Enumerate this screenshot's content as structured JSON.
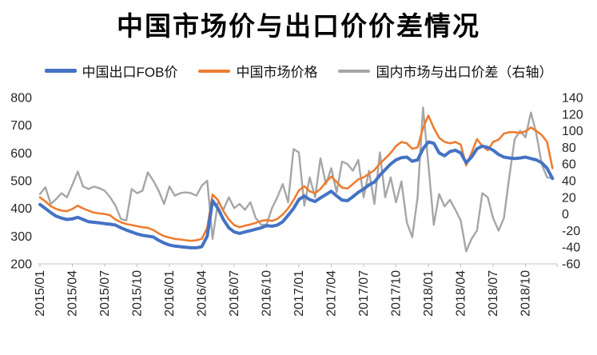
{
  "chart_data": {
    "type": "line",
    "title": "中国市场价与出口价价差情况",
    "x_sampling": "semi-monthly (2 points per month) from 2015/01 to 2018/12",
    "x_tick_labels": [
      "2015/01",
      "2015/04",
      "2015/07",
      "2015/10",
      "2016/01",
      "2016/04",
      "2016/07",
      "2016/10",
      "2017/01",
      "2017/04",
      "2017/07",
      "2017/10",
      "2018/01",
      "2018/04",
      "2018/07",
      "2018/10"
    ],
    "left_axis": {
      "min": 200,
      "max": 800,
      "step": 100,
      "ticks": [
        200,
        300,
        400,
        500,
        600,
        700,
        800
      ]
    },
    "right_axis": {
      "min": -60,
      "max": 140,
      "step": 20,
      "ticks": [
        -60,
        -40,
        -20,
        0,
        20,
        40,
        60,
        80,
        100,
        120,
        140
      ]
    },
    "grid": "none",
    "legend_position": "top",
    "axis_line_color": "#d9d9d9",
    "series": [
      {
        "name": "中国出口FOB价",
        "color": "#4472C4",
        "axis": "left",
        "line_width": 4,
        "legend_thickness": 5,
        "values": [
          414,
          400,
          385,
          372,
          365,
          360,
          362,
          368,
          360,
          352,
          350,
          348,
          345,
          343,
          340,
          330,
          322,
          315,
          308,
          303,
          300,
          297,
          285,
          275,
          268,
          264,
          262,
          260,
          258,
          258,
          262,
          300,
          428,
          400,
          360,
          330,
          315,
          310,
          315,
          320,
          325,
          330,
          338,
          336,
          340,
          352,
          375,
          400,
          432,
          445,
          432,
          425,
          438,
          450,
          462,
          445,
          430,
          428,
          442,
          458,
          470,
          485,
          495,
          520,
          540,
          560,
          575,
          583,
          585,
          570,
          575,
          615,
          640,
          635,
          600,
          590,
          605,
          610,
          600,
          565,
          585,
          615,
          625,
          620,
          610,
          595,
          585,
          582,
          580,
          582,
          585,
          580,
          575,
          565,
          545,
          508
        ]
      },
      {
        "name": "中国市场价格",
        "color": "#ED7D31",
        "axis": "left",
        "line_width": 2.6,
        "legend_thickness": 4,
        "values": [
          440,
          425,
          408,
          398,
          392,
          390,
          398,
          410,
          400,
          392,
          385,
          382,
          380,
          375,
          360,
          350,
          344,
          340,
          336,
          332,
          330,
          322,
          310,
          300,
          295,
          290,
          288,
          285,
          283,
          285,
          290,
          330,
          450,
          430,
          390,
          360,
          340,
          332,
          338,
          342,
          348,
          355,
          358,
          355,
          362,
          378,
          400,
          430,
          465,
          480,
          462,
          455,
          470,
          495,
          515,
          495,
          475,
          472,
          488,
          505,
          512,
          525,
          538,
          562,
          580,
          600,
          625,
          640,
          635,
          615,
          620,
          690,
          735,
          690,
          655,
          640,
          635,
          640,
          630,
          555,
          600,
          650,
          625,
          610,
          640,
          648,
          670,
          675,
          675,
          672,
          678,
          692,
          680,
          665,
          640,
          545
        ]
      },
      {
        "name": "国内市场与出口价差（右轴）",
        "color": "#A6A6A6",
        "axis": "right",
        "line_width": 2.4,
        "legend_thickness": 4,
        "values": [
          24,
          32,
          12,
          18,
          25,
          20,
          35,
          51,
          33,
          30,
          33,
          31,
          28,
          20,
          10,
          -6,
          -8,
          30,
          25,
          28,
          50,
          40,
          28,
          12,
          33,
          22,
          25,
          26,
          25,
          22,
          34,
          40,
          -30,
          15,
          5,
          20,
          7,
          12,
          5,
          14,
          -5,
          -13,
          -13,
          7,
          20,
          36,
          14,
          78,
          74,
          10,
          44,
          20,
          67,
          36,
          55,
          26,
          63,
          60,
          52,
          65,
          20,
          52,
          12,
          74,
          20,
          44,
          14,
          39,
          -10,
          -28,
          20,
          128,
          60,
          -13,
          24,
          9,
          17,
          5,
          -8,
          -45,
          -30,
          -20,
          25,
          20,
          -5,
          -20,
          -5,
          45,
          90,
          100,
          92,
          122,
          97,
          60,
          44,
          43
        ]
      }
    ]
  }
}
